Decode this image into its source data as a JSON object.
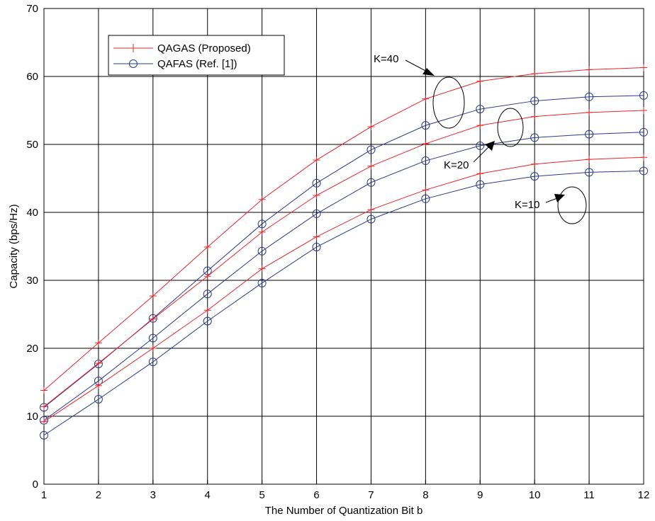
{
  "chart_data": {
    "type": "line",
    "xlabel": "The Number of Quantization Bit b",
    "ylabel": "Capacity (bps/Hz)",
    "xlim": [
      1,
      12
    ],
    "ylim": [
      0,
      70
    ],
    "xticks": [
      1,
      2,
      3,
      4,
      5,
      6,
      7,
      8,
      9,
      10,
      11,
      12
    ],
    "yticks": [
      0,
      10,
      20,
      30,
      40,
      50,
      60,
      70
    ],
    "grid": true,
    "legend_position": "top-left",
    "x": [
      1,
      2,
      3,
      4,
      5,
      6,
      7,
      8,
      9,
      10,
      11,
      12
    ],
    "legend": [
      {
        "label": "QAGAS (Proposed)",
        "color": "#e8262a",
        "marker": "plus"
      },
      {
        "label": "QAFAS (Ref. [1])",
        "color": "#2b3a8f",
        "marker": "circle"
      }
    ],
    "series": [
      {
        "group": "QAGAS (Proposed)",
        "k": "K=40",
        "color": "#e8262a",
        "marker": "plus",
        "values": [
          13.8,
          20.8,
          27.7,
          34.9,
          41.9,
          47.7,
          52.6,
          56.7,
          59.3,
          60.4,
          61.0,
          61.3
        ]
      },
      {
        "group": "QAFAS (Ref. [1])",
        "k": "K=40",
        "color": "#2b3a8f",
        "marker": "circle",
        "values": [
          11.3,
          17.7,
          24.4,
          31.4,
          38.3,
          44.3,
          49.2,
          52.8,
          55.2,
          56.4,
          57.0,
          57.2
        ]
      },
      {
        "group": "QAGAS (Proposed)",
        "k": "K=20",
        "color": "#e8262a",
        "marker": "plus",
        "values": [
          11.4,
          17.8,
          24.3,
          30.6,
          37.1,
          42.5,
          46.8,
          50.1,
          52.8,
          54.1,
          54.7,
          55.0
        ]
      },
      {
        "group": "QAFAS (Ref. [1])",
        "k": "K=20",
        "color": "#2b3a8f",
        "marker": "circle",
        "values": [
          9.4,
          15.2,
          21.5,
          28.0,
          34.3,
          39.8,
          44.4,
          47.6,
          49.8,
          51.0,
          51.5,
          51.8
        ]
      },
      {
        "group": "QAGAS (Proposed)",
        "k": "K=10",
        "color": "#e8262a",
        "marker": "plus",
        "values": [
          9.2,
          14.5,
          20.0,
          25.6,
          31.7,
          36.4,
          40.4,
          43.3,
          45.7,
          47.1,
          47.8,
          48.1
        ]
      },
      {
        "group": "QAFAS (Ref. [1])",
        "k": "K=10",
        "color": "#2b3a8f",
        "marker": "circle",
        "values": [
          7.2,
          12.5,
          18.0,
          24.0,
          29.6,
          34.9,
          39.0,
          42.0,
          44.1,
          45.3,
          45.9,
          46.1
        ]
      }
    ],
    "annotations": [
      {
        "text": "K=40"
      },
      {
        "text": "K=20"
      },
      {
        "text": "K=10"
      }
    ]
  }
}
